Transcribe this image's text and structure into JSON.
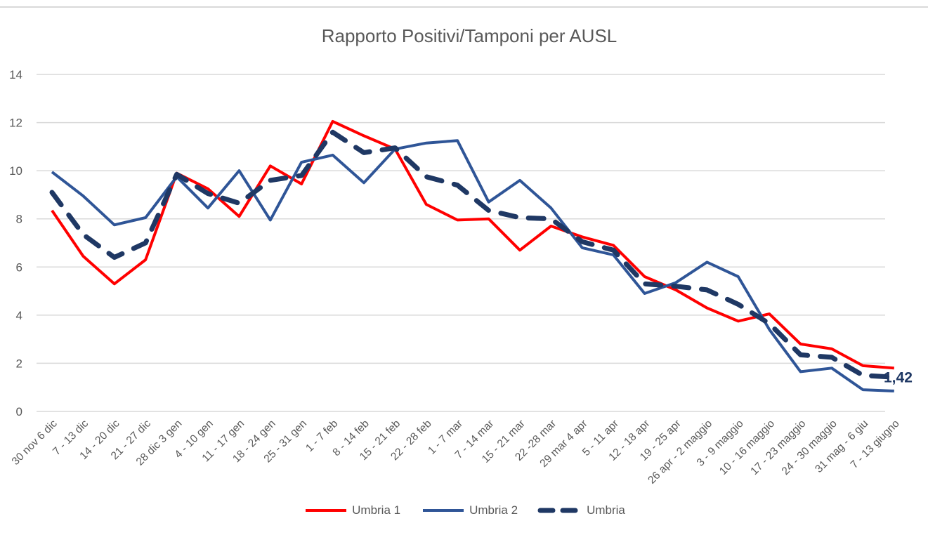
{
  "chart_data": {
    "type": "line",
    "title": "Rapporto Positivi/Tamponi per AUSL",
    "xlabel": "",
    "ylabel": "",
    "ylim": [
      0,
      14
    ],
    "yticks": [
      0,
      2,
      4,
      6,
      8,
      10,
      12,
      14
    ],
    "grid": true,
    "legend_position": "bottom",
    "categories": [
      "30 nov 6 dic",
      "7 - 13 dic",
      "14 - 20 dic",
      "21 - 27 dic",
      "28 dic 3 gen",
      "4 - 10 gen",
      "11 - 17 gen",
      "18 - 24 gen",
      "25 - 31 gen",
      "1 - 7 feb",
      "8 - 14 feb",
      "15 - 21 feb",
      "22 - 28 feb",
      "1 - 7 mar",
      "7 - 14 mar",
      "15 - 21 mar",
      "22 -28 mar",
      "29 mar 4 apr",
      "5 - 11 apr",
      "12 - 18 apr",
      "19 - 25 apr",
      "26 apr - 2 maggio",
      "3 - 9 maggio",
      "10 - 16 maggio",
      "17 - 23 maggio",
      "24 - 30 maggio",
      "31 mag - 6 giu",
      "7 - 13 giugno"
    ],
    "series": [
      {
        "name": "Umbria 1",
        "color": "#ff0000",
        "style": "solid",
        "values": [
          8.35,
          6.45,
          5.3,
          6.3,
          9.9,
          9.25,
          8.1,
          10.2,
          9.45,
          12.05,
          11.45,
          10.9,
          8.6,
          7.95,
          8.0,
          6.7,
          7.7,
          7.25,
          6.9,
          5.6,
          5.05,
          4.3,
          3.75,
          4.05,
          2.8,
          2.6,
          1.9,
          1.8
        ]
      },
      {
        "name": "Umbria 2",
        "color": "#2f5597",
        "style": "solid",
        "values": [
          9.95,
          8.95,
          7.75,
          8.05,
          9.75,
          8.45,
          10.0,
          7.95,
          10.35,
          10.65,
          9.5,
          10.9,
          11.15,
          11.25,
          8.7,
          9.6,
          8.45,
          6.8,
          6.5,
          4.9,
          5.35,
          6.2,
          5.6,
          3.4,
          1.65,
          1.8,
          0.9,
          0.85
        ]
      },
      {
        "name": "Umbria",
        "color": "#1f3864",
        "style": "dashed",
        "values": [
          9.1,
          7.35,
          6.4,
          7.0,
          9.85,
          9.05,
          8.65,
          9.6,
          9.8,
          11.6,
          10.75,
          10.95,
          9.75,
          9.4,
          8.35,
          8.05,
          8.0,
          7.05,
          6.7,
          5.3,
          5.2,
          5.05,
          4.45,
          3.65,
          2.35,
          2.25,
          1.5,
          1.42
        ]
      }
    ],
    "end_annotation": "1,42"
  }
}
